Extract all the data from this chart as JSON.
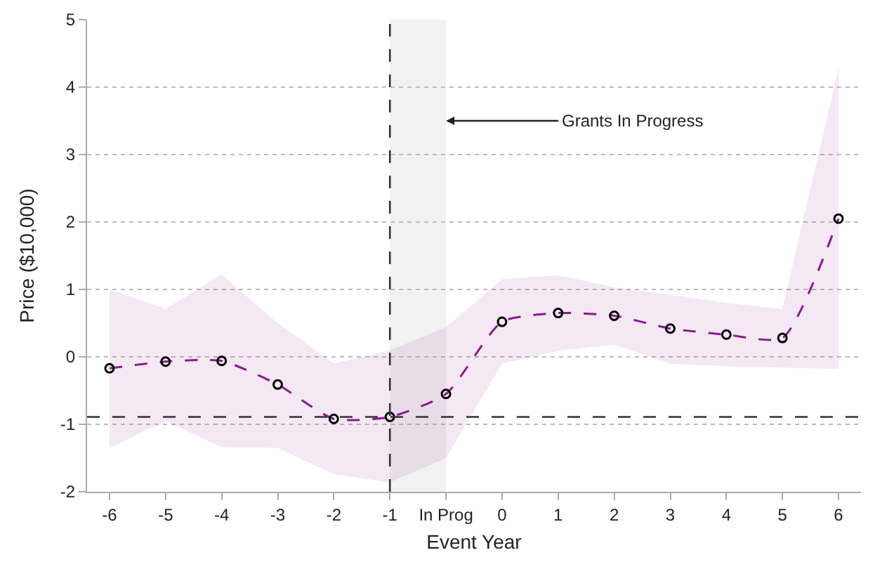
{
  "chart_data": {
    "type": "line",
    "xlabel": "Event Year",
    "ylabel": "Price ($10,000)",
    "categories": [
      "-6",
      "-5",
      "-4",
      "-3",
      "-2",
      "-1",
      "In Prog",
      "0",
      "1",
      "2",
      "3",
      "4",
      "5",
      "6"
    ],
    "series": [
      {
        "color": "#8b1a8b",
        "values": [
          -0.17,
          -0.07,
          -0.06,
          -0.41,
          -0.92,
          -0.89,
          -0.55,
          0.52,
          0.65,
          0.61,
          0.42,
          0.33,
          0.28,
          2.05
        ],
        "lower": [
          -1.35,
          -0.95,
          -1.34,
          -1.35,
          -1.74,
          -1.86,
          -1.5,
          -0.1,
          0.09,
          0.18,
          -0.1,
          -0.14,
          -0.16,
          -0.18
        ],
        "upper": [
          1.0,
          0.71,
          1.22,
          0.5,
          -0.1,
          0.1,
          0.44,
          1.15,
          1.21,
          1.03,
          0.92,
          0.8,
          0.71,
          4.28
        ]
      }
    ],
    "ylim": [
      -2,
      5
    ],
    "yticks": [
      -2,
      -1,
      0,
      1,
      2,
      3,
      4,
      5
    ],
    "grid": "y",
    "marker": "circle",
    "line_style": "dashed",
    "ref_lines": [
      {
        "axis": "y",
        "value": -0.89,
        "line_style": "dashed",
        "color": "#333333"
      },
      {
        "axis": "x",
        "value": "-1",
        "line_style": "dashed",
        "color": "#333333"
      }
    ],
    "bands": [
      {
        "axis": "x",
        "from": "-1",
        "to": "In Prog",
        "color": "#f2f2f2"
      }
    ],
    "annotations": [
      {
        "text": "Grants In Progress",
        "x": "In Prog",
        "y": 3.5
      }
    ]
  }
}
